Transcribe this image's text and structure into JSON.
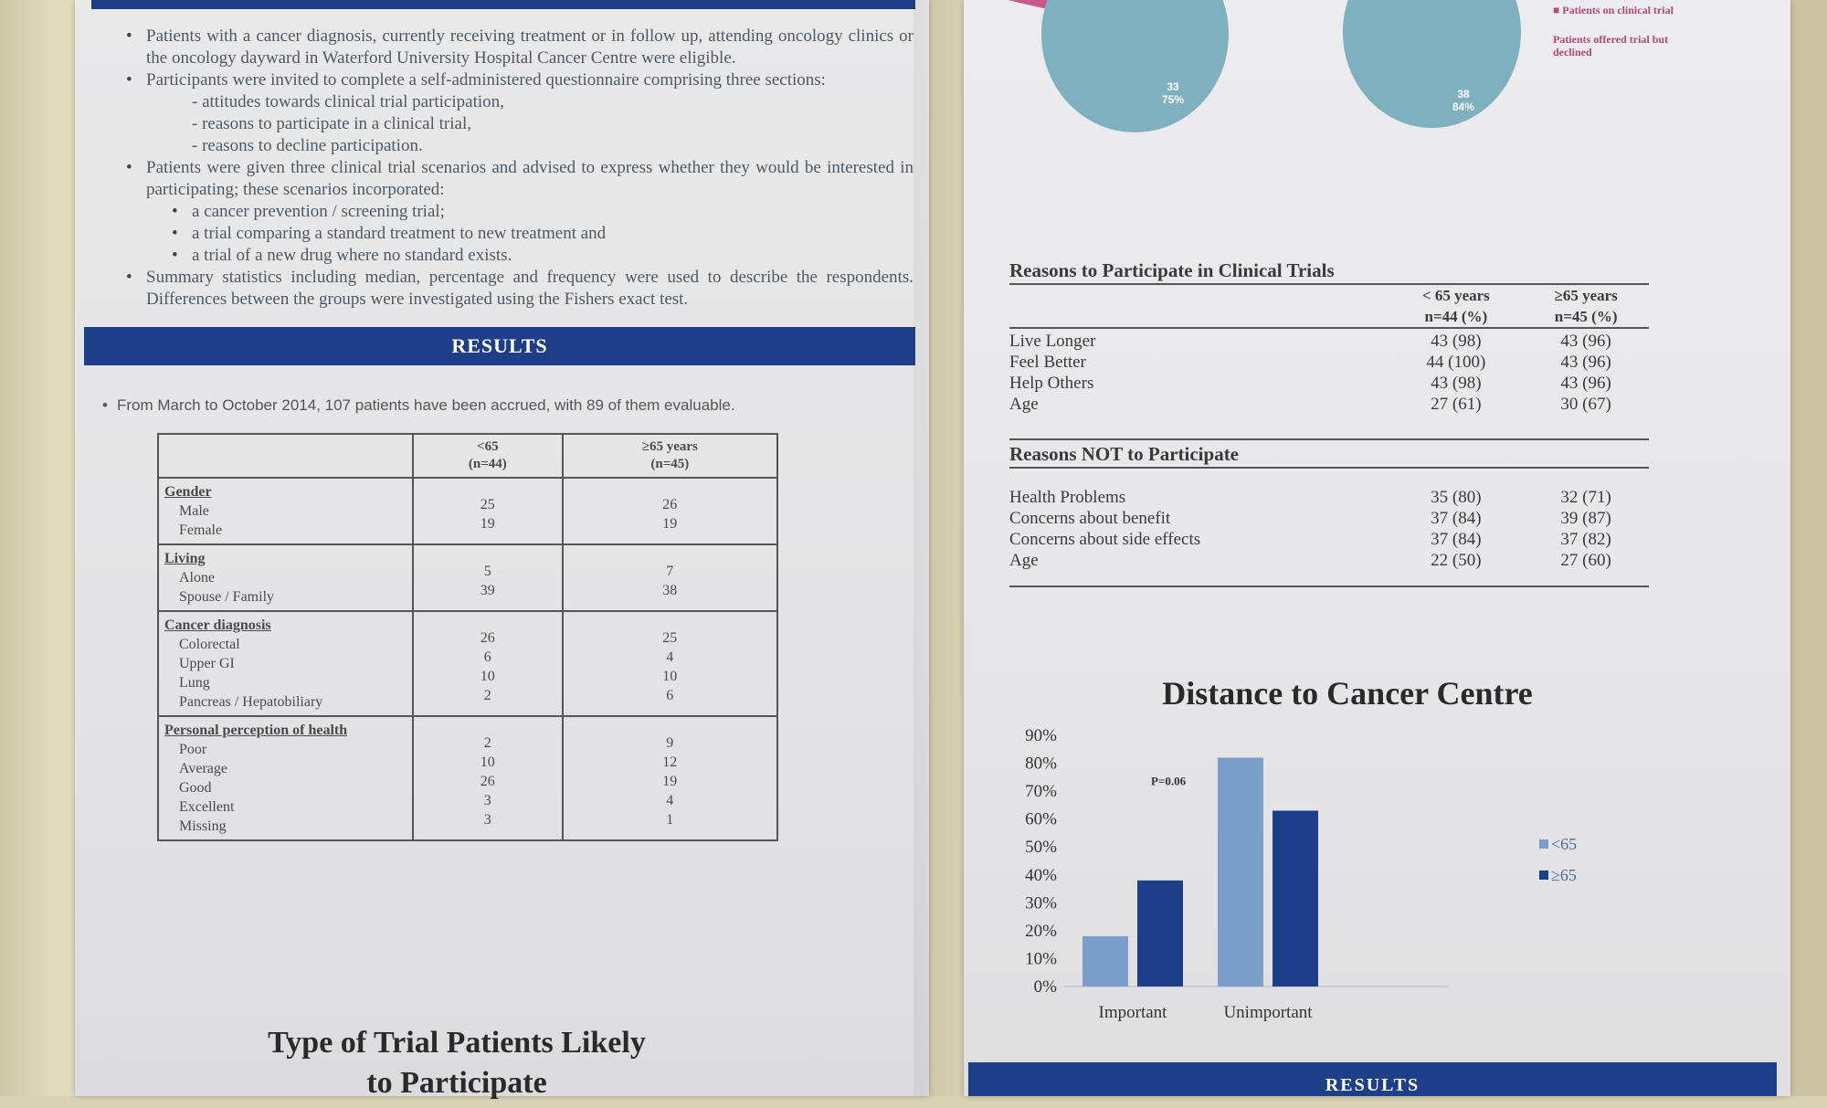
{
  "methods": {
    "bullets": [
      "Patients with a cancer diagnosis, currently receiving treatment or in follow up, attending oncology clinics or the oncology dayward in Waterford University Hospital Cancer Centre were eligible.",
      "Participants were invited to complete a self-administered questionnaire comprising three sections:"
    ],
    "sections": [
      "- attitudes towards clinical trial participation,",
      "- reasons to participate in a clinical trial,",
      "- reasons to decline participation."
    ],
    "scenario_intro": "Patients were given three clinical trial scenarios and advised to express whether they would be interested in participating; these scenarios incorporated:",
    "scenarios": [
      "a cancer prevention / screening trial;",
      "a trial comparing a standard treatment to new treatment and",
      "a trial of a new drug where no standard exists."
    ],
    "stats": "Summary statistics including median, percentage and frequency were used to describe the respondents. Differences between the groups were investigated using the Fishers exact test."
  },
  "results_banner": "RESULTS",
  "accrual": "From March to October 2014, 107 patients have been accrued, with 89 of them evaluable.",
  "demo_table": {
    "headers": [
      "<65",
      "(n=44)",
      "≥65 years",
      "(n=45)"
    ],
    "groups": [
      {
        "title": "Gender",
        "items": [
          "Male",
          "Female"
        ],
        "a": [
          "25",
          "19"
        ],
        "b": [
          "26",
          "19"
        ]
      },
      {
        "title": "Living",
        "items": [
          "Alone",
          "Spouse / Family"
        ],
        "a": [
          "5",
          "39"
        ],
        "b": [
          "7",
          "38"
        ]
      },
      {
        "title": "Cancer diagnosis",
        "items": [
          "Colorectal",
          "Upper GI",
          "Lung",
          "Pancreas / Hepatobiliary"
        ],
        "a": [
          "26",
          "6",
          "10",
          "2"
        ],
        "b": [
          "25",
          "4",
          "10",
          "6"
        ]
      },
      {
        "title": "Personal perception of health",
        "items": [
          "Poor",
          "Average",
          "Good",
          "Excellent",
          "Missing"
        ],
        "a": [
          "2",
          "10",
          "26",
          "3",
          "3"
        ],
        "b": [
          "9",
          "12",
          "19",
          "4",
          "1"
        ]
      }
    ]
  },
  "trial_title": "Type of Trial Patients Likely to Participate",
  "pies": {
    "left_value": "33",
    "left_pct": "75%",
    "right_value": "38",
    "right_pct": "84%",
    "legend_on_trial": "■ Patients on clinical trial",
    "legend_declined": "Patients offered trial but declined"
  },
  "reasons": {
    "title": "Reasons to Participate in Clinical Trials",
    "col_a": "< 65 years",
    "col_a_n": "n=44 (%)",
    "col_b": "≥65 years",
    "col_b_n": "n=45 (%)",
    "participate": [
      [
        "Live Longer",
        "43 (98)",
        "43 (96)"
      ],
      [
        "Feel Better",
        "44 (100)",
        "43 (96)"
      ],
      [
        "Help Others",
        "43 (98)",
        "43 (96)"
      ],
      [
        "Age",
        "27 (61)",
        "30 (67)"
      ]
    ],
    "not_title": "Reasons NOT to  Participate",
    "not_participate": [
      [
        "Health Problems",
        "35 (80)",
        "32 (71)"
      ],
      [
        "Concerns about benefit",
        "37 (84)",
        "39 (87)"
      ],
      [
        "Concerns about side effects",
        "37 (84)",
        "37 (82)"
      ],
      [
        "Age",
        "22 (50)",
        "27 (60)"
      ]
    ]
  },
  "chart_data": {
    "type": "bar",
    "title": "Distance to Cancer Centre",
    "categories": [
      "Important",
      "Unimportant"
    ],
    "series": [
      {
        "name": "<65",
        "values": [
          18,
          82
        ],
        "color": "#7b9fc9"
      },
      {
        "name": "≥65",
        "values": [
          38,
          63
        ],
        "color": "#1d3f87"
      }
    ],
    "yticks": [
      "0%",
      "10%",
      "20%",
      "30%",
      "40%",
      "50%",
      "60%",
      "70%",
      "80%",
      "90%"
    ],
    "ylim": [
      0,
      90
    ],
    "annotation": "P=0.06",
    "legend_position": "right"
  },
  "bottom_banner": "RESULTS"
}
